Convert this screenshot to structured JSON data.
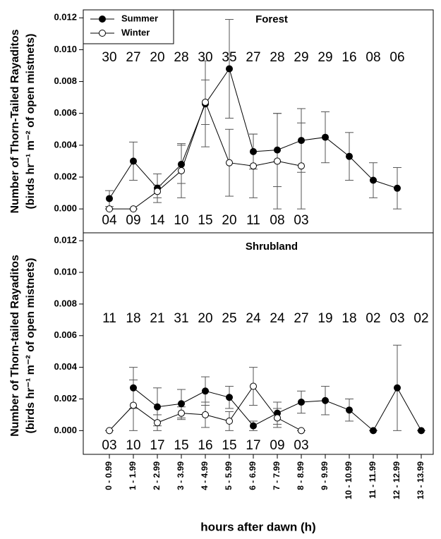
{
  "chart_data": [
    {
      "type": "line",
      "title": "Forest",
      "ylabel": [
        "Number of Thorn-Tailed Rayaditos",
        "(birds hr⁻¹ m⁻² of open mistnets)"
      ],
      "ylim": [
        -0.0015,
        0.0125
      ],
      "yticks": [
        {
          "value": 0,
          "label": "0.000"
        },
        {
          "value": 0.002,
          "label": "0.002"
        },
        {
          "value": 0.004,
          "label": "0.004"
        },
        {
          "value": 0.006,
          "label": "0.006"
        },
        {
          "value": 0.008,
          "label": "0.008"
        },
        {
          "value": 0.01,
          "label": "0.010"
        },
        {
          "value": 0.012,
          "label": "0.012"
        }
      ],
      "legend": "upper left",
      "series": [
        {
          "name": "Summer",
          "color": "#000000",
          "marker": "filled",
          "values": [
            0.00065,
            0.003,
            0.0013,
            0.0028,
            0.0066,
            0.0088,
            0.0036,
            0.0037,
            0.0043,
            0.0045,
            0.0033,
            0.0018,
            0.0013,
            null
          ],
          "errors": [
            0.0005,
            0.0012,
            0.0009,
            0.0012,
            0.0027,
            0.0031,
            0.0011,
            0.0023,
            0.002,
            0.0016,
            0.0015,
            0.0011,
            0.0013,
            null
          ],
          "sample_sizes": [
            "30",
            "27",
            "20",
            "28",
            "30",
            "35",
            "27",
            "28",
            "29",
            "29",
            "16",
            "08",
            "06"
          ]
        },
        {
          "name": "Winter",
          "color": "#000000",
          "marker": "open",
          "values": [
            0,
            0,
            0.0011,
            0.0024,
            0.0067,
            0.0029,
            0.0027,
            0.003,
            0.0027,
            null,
            null,
            null,
            null,
            null
          ],
          "errors": [
            0,
            0,
            0.0004,
            0.0017,
            0.0014,
            0.0021,
            0.002,
            0.003,
            0.0027,
            null,
            null,
            null,
            null,
            null
          ],
          "sample_sizes": [
            "04",
            "09",
            "14",
            "10",
            "15",
            "20",
            "11",
            "08",
            "03"
          ]
        }
      ]
    },
    {
      "type": "line",
      "title": "Shrubland",
      "ylabel": [
        "Number of Thorn-tailed Rayaditos",
        "(birds hr⁻¹ m⁻² of open mistnets)"
      ],
      "xlabel": "hours after dawn (h)",
      "categories": [
        "0 - 0.99",
        "1 - 1.99",
        "2 - 2.99",
        "3 - 3.99",
        "4 - 4.99",
        "5 - 5.99",
        "6 - 6.99",
        "7 - 7.99",
        "8 - 8.99",
        "9 - 9.99",
        "10 - 10.99",
        "11 - 11.99",
        "12 - 12.99",
        "13 - 13.99"
      ],
      "ylim": [
        -0.0015,
        0.0125
      ],
      "yticks": [
        {
          "value": 0,
          "label": "0.000"
        },
        {
          "value": 0.002,
          "label": "0.002"
        },
        {
          "value": 0.004,
          "label": "0.004"
        },
        {
          "value": 0.006,
          "label": "0.006"
        },
        {
          "value": 0.008,
          "label": "0.008"
        },
        {
          "value": 0.01,
          "label": "0.010"
        },
        {
          "value": 0.012,
          "label": "0.012"
        }
      ],
      "series": [
        {
          "color": "#000000",
          "marker": "filled",
          "values": [
            null,
            0.0027,
            0.0015,
            0.0017,
            0.0025,
            0.0021,
            0.0003,
            0.0011,
            0.0018,
            0.0019,
            0.0013,
            0,
            0.0027,
            0
          ],
          "errors": [
            null,
            0.0013,
            0.0012,
            0.0009,
            0.0009,
            0.0007,
            0.0003,
            0.0007,
            0.0007,
            0.0009,
            0.0007,
            0,
            0.0027,
            0
          ],
          "sample_sizes": [
            "11",
            "18",
            "21",
            "31",
            "20",
            "25",
            "24",
            "24",
            "27",
            "19",
            "18",
            "02",
            "03",
            "02"
          ]
        },
        {
          "color": "#000000",
          "marker": "open",
          "values": [
            0,
            0.0016,
            0.0005,
            0.0011,
            0.001,
            0.0006,
            0.0028,
            0.0008,
            0,
            null,
            null,
            null,
            null,
            null
          ],
          "errors": [
            0,
            0.0016,
            0.0005,
            0.0004,
            0.0008,
            0.0006,
            0.0012,
            0.0006,
            0,
            null,
            null,
            null,
            null,
            null
          ],
          "sample_sizes": [
            "03",
            "10",
            "17",
            "15",
            "16",
            "15",
            "17",
            "09",
            "03"
          ]
        }
      ]
    }
  ]
}
